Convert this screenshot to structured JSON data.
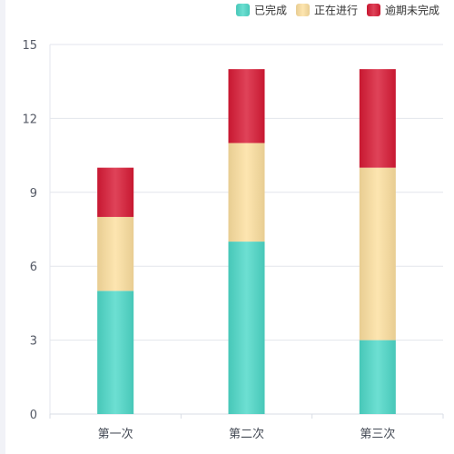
{
  "chart_data": {
    "type": "bar",
    "stacked": true,
    "categories": [
      "第一次",
      "第二次",
      "第三次"
    ],
    "series": [
      {
        "name": "已完成",
        "values": [
          5,
          7,
          3
        ],
        "color": "#4dd8c8"
      },
      {
        "name": "正在进行",
        "values": [
          3,
          4,
          7
        ],
        "color": "#fcdf9f"
      },
      {
        "name": "逾期未完成",
        "values": [
          2,
          3,
          4
        ],
        "color": "#d81a35"
      }
    ],
    "ylim": [
      0,
      15
    ],
    "yticks": [
      0,
      3,
      6,
      9,
      12,
      15
    ],
    "title": "",
    "xlabel": "",
    "ylabel": "",
    "grid": true,
    "legend_position": "top-right"
  }
}
